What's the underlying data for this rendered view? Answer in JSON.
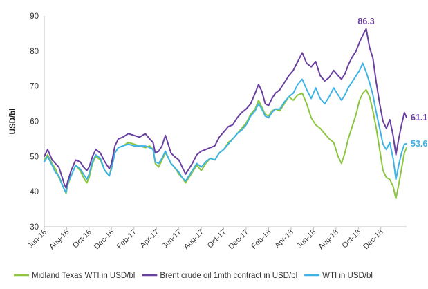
{
  "chart_data": {
    "type": "line",
    "title": "",
    "xlabel": "",
    "ylabel": "USD/bl",
    "ylim": [
      30,
      90
    ],
    "yticks": [
      30,
      40,
      50,
      60,
      70,
      80,
      90
    ],
    "grid": false,
    "legend_position": "bottom",
    "x_tick_labels": [
      "Jun-16",
      "Aug-16",
      "Oct-16",
      "Dec-16",
      "Feb-17",
      "Apr-17",
      "Jun-17",
      "Aug-17",
      "Oct-17",
      "Dec-17",
      "Feb-18",
      "Apr-18",
      "Jun-18",
      "Aug-18",
      "Oct-18",
      "Dec-18"
    ],
    "x_ticks": [
      0,
      2,
      4,
      6,
      8,
      10,
      12,
      14,
      16,
      18,
      20,
      22,
      24,
      26,
      28,
      30
    ],
    "x_range": [
      0,
      32.3
    ],
    "series": [
      {
        "name": "Midland Texas WTI in USD/bl",
        "color": "#8cc63f",
        "points": [
          [
            0,
            49
          ],
          [
            0.3,
            50.5
          ],
          [
            0.7,
            48
          ],
          [
            1,
            46.5
          ],
          [
            1.3,
            44
          ],
          [
            1.6,
            42
          ],
          [
            1.8,
            40.5
          ],
          [
            1.95,
            39.5
          ],
          [
            2.1,
            42
          ],
          [
            2.4,
            44.5
          ],
          [
            2.8,
            47.5
          ],
          [
            3.2,
            46
          ],
          [
            3.5,
            44
          ],
          [
            3.8,
            42.5
          ],
          [
            4,
            44
          ],
          [
            4.3,
            48
          ],
          [
            4.6,
            50
          ],
          [
            5,
            49
          ],
          [
            5.4,
            46
          ],
          [
            5.8,
            44.5
          ],
          [
            6,
            47
          ],
          [
            6.3,
            51
          ],
          [
            6.6,
            52.5
          ],
          [
            7,
            53
          ],
          [
            7.5,
            54
          ],
          [
            8,
            53.5
          ],
          [
            8.5,
            53
          ],
          [
            9,
            52.5
          ],
          [
            9.4,
            53
          ],
          [
            9.7,
            52
          ],
          [
            9.9,
            48
          ],
          [
            10.2,
            47
          ],
          [
            10.5,
            49
          ],
          [
            10.8,
            51
          ],
          [
            11,
            50
          ],
          [
            11.3,
            48
          ],
          [
            11.6,
            47
          ],
          [
            12,
            45
          ],
          [
            12.3,
            44
          ],
          [
            12.6,
            42.5
          ],
          [
            12.9,
            44
          ],
          [
            13.2,
            45.5
          ],
          [
            13.6,
            47.5
          ],
          [
            14,
            46
          ],
          [
            14.4,
            48
          ],
          [
            14.8,
            49.5
          ],
          [
            15.2,
            49
          ],
          [
            15.6,
            51
          ],
          [
            16,
            52
          ],
          [
            16.4,
            54
          ],
          [
            16.8,
            55
          ],
          [
            17.2,
            56.5
          ],
          [
            17.6,
            58
          ],
          [
            18,
            59.5
          ],
          [
            18.4,
            62
          ],
          [
            18.8,
            63.5
          ],
          [
            19.1,
            66
          ],
          [
            19.4,
            64
          ],
          [
            19.7,
            62
          ],
          [
            20,
            61.5
          ],
          [
            20.3,
            63
          ],
          [
            20.6,
            63.5
          ],
          [
            21,
            63
          ],
          [
            21.4,
            65
          ],
          [
            21.8,
            67
          ],
          [
            22.2,
            66
          ],
          [
            22.6,
            67.5
          ],
          [
            23,
            68
          ],
          [
            23.4,
            65
          ],
          [
            23.8,
            61
          ],
          [
            24.2,
            59
          ],
          [
            24.6,
            58
          ],
          [
            25,
            56.5
          ],
          [
            25.4,
            55
          ],
          [
            25.8,
            54
          ],
          [
            26.2,
            50
          ],
          [
            26.5,
            48
          ],
          [
            26.8,
            51
          ],
          [
            27.1,
            55
          ],
          [
            27.4,
            58
          ],
          [
            27.8,
            62
          ],
          [
            28.1,
            66
          ],
          [
            28.4,
            68
          ],
          [
            28.7,
            69
          ],
          [
            29,
            67
          ],
          [
            29.3,
            63
          ],
          [
            29.6,
            58
          ],
          [
            29.9,
            52
          ],
          [
            30.2,
            46
          ],
          [
            30.5,
            44
          ],
          [
            30.8,
            43.5
          ],
          [
            31.1,
            41.5
          ],
          [
            31.35,
            38
          ],
          [
            31.6,
            42
          ],
          [
            31.85,
            46.5
          ],
          [
            32.1,
            51
          ],
          [
            32.3,
            52.5
          ]
        ]
      },
      {
        "name": "Brent crude oil 1mth contract in USD/bl",
        "color": "#6a3fa0",
        "points": [
          [
            0,
            50
          ],
          [
            0.3,
            52
          ],
          [
            0.7,
            49
          ],
          [
            1,
            48
          ],
          [
            1.3,
            47
          ],
          [
            1.6,
            44
          ],
          [
            1.8,
            42
          ],
          [
            1.95,
            41
          ],
          [
            2.1,
            43
          ],
          [
            2.4,
            46
          ],
          [
            2.8,
            49
          ],
          [
            3.2,
            48.5
          ],
          [
            3.5,
            47
          ],
          [
            3.8,
            46
          ],
          [
            4,
            47
          ],
          [
            4.3,
            50
          ],
          [
            4.6,
            52
          ],
          [
            5,
            51
          ],
          [
            5.4,
            48.5
          ],
          [
            5.8,
            46.5
          ],
          [
            6,
            48
          ],
          [
            6.3,
            53
          ],
          [
            6.6,
            55
          ],
          [
            7,
            55.5
          ],
          [
            7.5,
            56.5
          ],
          [
            8,
            56
          ],
          [
            8.5,
            55.5
          ],
          [
            9,
            56.5
          ],
          [
            9.4,
            55
          ],
          [
            9.7,
            54
          ],
          [
            9.9,
            51
          ],
          [
            10.2,
            51.5
          ],
          [
            10.5,
            53
          ],
          [
            10.8,
            56
          ],
          [
            11,
            54
          ],
          [
            11.3,
            51
          ],
          [
            11.6,
            50
          ],
          [
            12,
            49
          ],
          [
            12.3,
            47
          ],
          [
            12.6,
            45
          ],
          [
            12.9,
            46.5
          ],
          [
            13.2,
            48
          ],
          [
            13.6,
            50.5
          ],
          [
            14,
            51.5
          ],
          [
            14.4,
            52
          ],
          [
            14.8,
            52.5
          ],
          [
            15.2,
            53
          ],
          [
            15.6,
            55.5
          ],
          [
            16,
            57
          ],
          [
            16.4,
            58.5
          ],
          [
            16.8,
            59
          ],
          [
            17.2,
            61
          ],
          [
            17.6,
            62.5
          ],
          [
            18,
            63.5
          ],
          [
            18.4,
            65
          ],
          [
            18.8,
            68
          ],
          [
            19.1,
            70.5
          ],
          [
            19.4,
            68.5
          ],
          [
            19.7,
            65
          ],
          [
            20,
            64.5
          ],
          [
            20.3,
            66.5
          ],
          [
            20.6,
            68
          ],
          [
            21,
            69
          ],
          [
            21.4,
            71
          ],
          [
            21.8,
            73
          ],
          [
            22.2,
            74.5
          ],
          [
            22.6,
            77
          ],
          [
            23,
            79.5
          ],
          [
            23.4,
            76.5
          ],
          [
            23.8,
            75.5
          ],
          [
            24.2,
            77
          ],
          [
            24.6,
            73
          ],
          [
            25,
            71.5
          ],
          [
            25.4,
            72.5
          ],
          [
            25.8,
            74.5
          ],
          [
            26.2,
            73
          ],
          [
            26.5,
            72
          ],
          [
            26.8,
            73.5
          ],
          [
            27.1,
            76
          ],
          [
            27.4,
            78
          ],
          [
            27.8,
            80
          ],
          [
            28.1,
            82.5
          ],
          [
            28.4,
            84.5
          ],
          [
            28.7,
            86.3
          ],
          [
            29,
            81
          ],
          [
            29.3,
            78
          ],
          [
            29.6,
            71
          ],
          [
            29.9,
            65
          ],
          [
            30.2,
            60
          ],
          [
            30.5,
            58
          ],
          [
            30.8,
            60.5
          ],
          [
            31.1,
            56
          ],
          [
            31.35,
            50.5
          ],
          [
            31.6,
            55
          ],
          [
            31.85,
            59
          ],
          [
            32.1,
            62.5
          ],
          [
            32.3,
            61.1
          ]
        ]
      },
      {
        "name": "WTI in USD/bl",
        "color": "#3fb3e6",
        "points": [
          [
            0,
            48.5
          ],
          [
            0.3,
            50
          ],
          [
            0.7,
            47.5
          ],
          [
            1,
            45.5
          ],
          [
            1.3,
            44.5
          ],
          [
            1.6,
            42
          ],
          [
            1.8,
            40.5
          ],
          [
            1.95,
            39.8
          ],
          [
            2.1,
            42.5
          ],
          [
            2.4,
            44.5
          ],
          [
            2.8,
            47.5
          ],
          [
            3.2,
            46.5
          ],
          [
            3.5,
            45
          ],
          [
            3.8,
            43.5
          ],
          [
            4,
            45
          ],
          [
            4.3,
            48.5
          ],
          [
            4.6,
            50.5
          ],
          [
            5,
            49.5
          ],
          [
            5.4,
            46
          ],
          [
            5.8,
            44.5
          ],
          [
            6,
            46.5
          ],
          [
            6.3,
            51
          ],
          [
            6.6,
            52.5
          ],
          [
            7,
            53
          ],
          [
            7.5,
            53.5
          ],
          [
            8,
            53
          ],
          [
            8.5,
            53
          ],
          [
            9,
            53
          ],
          [
            9.4,
            52.5
          ],
          [
            9.7,
            52
          ],
          [
            9.9,
            48.5
          ],
          [
            10.2,
            48
          ],
          [
            10.5,
            49.5
          ],
          [
            10.8,
            51.5
          ],
          [
            11,
            50
          ],
          [
            11.3,
            48
          ],
          [
            11.6,
            47
          ],
          [
            12,
            45.5
          ],
          [
            12.3,
            44
          ],
          [
            12.6,
            43
          ],
          [
            12.9,
            44.5
          ],
          [
            13.2,
            46
          ],
          [
            13.6,
            48
          ],
          [
            14,
            47
          ],
          [
            14.4,
            48.5
          ],
          [
            14.8,
            49.5
          ],
          [
            15.2,
            49
          ],
          [
            15.6,
            51
          ],
          [
            16,
            52
          ],
          [
            16.4,
            53.5
          ],
          [
            16.8,
            55
          ],
          [
            17.2,
            56.5
          ],
          [
            17.6,
            57.5
          ],
          [
            18,
            59
          ],
          [
            18.4,
            61.5
          ],
          [
            18.8,
            63
          ],
          [
            19.1,
            65
          ],
          [
            19.4,
            63.5
          ],
          [
            19.7,
            61.5
          ],
          [
            20,
            61
          ],
          [
            20.3,
            62.5
          ],
          [
            20.6,
            63.5
          ],
          [
            21,
            63.5
          ],
          [
            21.4,
            65.5
          ],
          [
            21.8,
            67
          ],
          [
            22.2,
            68
          ],
          [
            22.6,
            70.5
          ],
          [
            23,
            72
          ],
          [
            23.4,
            69
          ],
          [
            23.8,
            66.5
          ],
          [
            24.2,
            69.5
          ],
          [
            24.6,
            66.5
          ],
          [
            25,
            65
          ],
          [
            25.4,
            67
          ],
          [
            25.8,
            69.5
          ],
          [
            26.2,
            67.5
          ],
          [
            26.5,
            66
          ],
          [
            26.8,
            67.5
          ],
          [
            27.1,
            69.5
          ],
          [
            27.4,
            71
          ],
          [
            27.8,
            73
          ],
          [
            28.1,
            74.5
          ],
          [
            28.4,
            76.5
          ],
          [
            28.7,
            74
          ],
          [
            29,
            71
          ],
          [
            29.3,
            67.5
          ],
          [
            29.6,
            62.5
          ],
          [
            29.9,
            58
          ],
          [
            30.2,
            53.5
          ],
          [
            30.5,
            52
          ],
          [
            30.8,
            54
          ],
          [
            31.1,
            49.5
          ],
          [
            31.35,
            43.5
          ],
          [
            31.6,
            47.5
          ],
          [
            31.85,
            51
          ],
          [
            32.1,
            53.5
          ],
          [
            32.3,
            53.6
          ]
        ]
      }
    ],
    "annotations": [
      {
        "text": "86.3",
        "series": 1,
        "x": 28.7,
        "y": 86.3,
        "color": "#6a3fa0"
      },
      {
        "text": "61.1",
        "series": 1,
        "x": 32.3,
        "y": 61.1,
        "color": "#6a3fa0"
      },
      {
        "text": "53.6",
        "series": 2,
        "x": 32.3,
        "y": 53.6,
        "color": "#3fb3e6"
      }
    ]
  }
}
